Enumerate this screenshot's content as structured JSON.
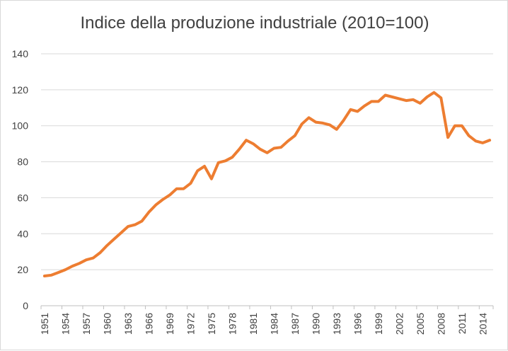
{
  "chart_data": {
    "type": "line",
    "title": "Indice della produzione industriale (2010=100)",
    "xlabel": "",
    "ylabel": "",
    "ylim": [
      0,
      140
    ],
    "yticks": [
      0,
      20,
      40,
      60,
      80,
      100,
      120,
      140
    ],
    "xtick_labels": [
      "1951",
      "1954",
      "1957",
      "1960",
      "1963",
      "1966",
      "1969",
      "1972",
      "1975",
      "1978",
      "1981",
      "1984",
      "1987",
      "1990",
      "1993",
      "1996",
      "1999",
      "2002",
      "2005",
      "2008",
      "2011",
      "2014"
    ],
    "grid": true,
    "legend": "none",
    "series": [
      {
        "name": "Indice della produzione industriale",
        "color": "#ED7D31",
        "x": [
          1951,
          1952,
          1953,
          1954,
          1955,
          1956,
          1957,
          1958,
          1959,
          1960,
          1961,
          1962,
          1963,
          1964,
          1965,
          1966,
          1967,
          1968,
          1969,
          1970,
          1971,
          1972,
          1973,
          1974,
          1975,
          1976,
          1977,
          1978,
          1979,
          1980,
          1981,
          1982,
          1983,
          1984,
          1985,
          1986,
          1987,
          1988,
          1989,
          1990,
          1991,
          1992,
          1993,
          1994,
          1995,
          1996,
          1997,
          1998,
          1999,
          2000,
          2001,
          2002,
          2003,
          2004,
          2005,
          2006,
          2007,
          2008,
          2009,
          2010,
          2011,
          2012,
          2013,
          2014,
          2015
        ],
        "values": [
          16.5,
          17,
          18.5,
          20,
          22,
          23.5,
          25.5,
          26.5,
          29.5,
          33.5,
          37,
          40.5,
          44,
          45,
          47,
          52,
          56,
          59,
          61.5,
          65,
          65,
          68,
          75,
          77.5,
          70.5,
          79.5,
          80.5,
          82.5,
          87,
          92,
          90,
          87,
          85,
          87.5,
          88,
          91.5,
          94.5,
          101,
          104.5,
          102,
          101.5,
          100.5,
          98,
          103,
          109,
          108,
          111,
          113.5,
          113.5,
          117,
          116,
          115,
          114,
          114.5,
          112.5,
          116,
          118.5,
          115.5,
          93.5,
          100,
          100,
          94.5,
          91.5,
          90.5,
          92
        ]
      }
    ]
  }
}
